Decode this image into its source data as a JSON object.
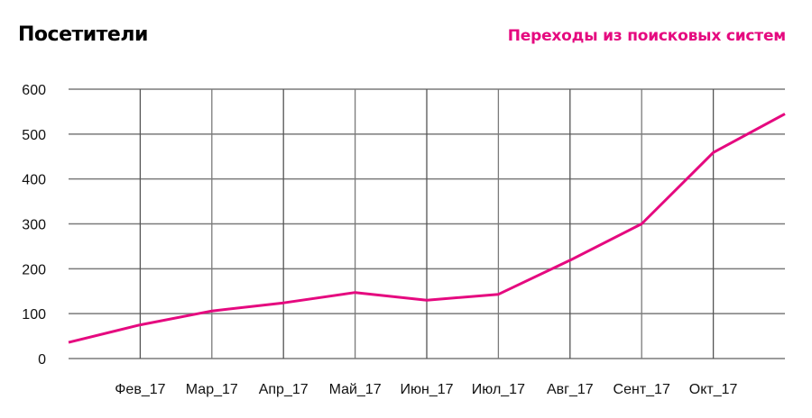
{
  "header": {
    "title": "Посетители",
    "series_title": "Переходы из поисковых систем"
  },
  "colors": {
    "line": "#E5097F",
    "grid": "#7a7a7a",
    "text": "#111111"
  },
  "chart_data": {
    "type": "line",
    "title": "Посетители",
    "subtitle": "Переходы из поисковых систем",
    "xlabel": "",
    "ylabel": "",
    "ylim": [
      0,
      600
    ],
    "yticks": [
      0,
      100,
      200,
      300,
      400,
      500,
      600
    ],
    "grid": true,
    "legend": "none",
    "categories": [
      "",
      "Фев_17",
      "Мар_17",
      "Апр_17",
      "Май_17",
      "Июн_17",
      "Июл_17",
      "Авг_17",
      "Сент_17",
      "Окт_17",
      ""
    ],
    "series": [
      {
        "name": "Переходы из поисковых систем",
        "values": [
          36,
          75,
          106,
          124,
          147,
          130,
          143,
          219,
          300,
          459,
          545
        ]
      }
    ]
  }
}
